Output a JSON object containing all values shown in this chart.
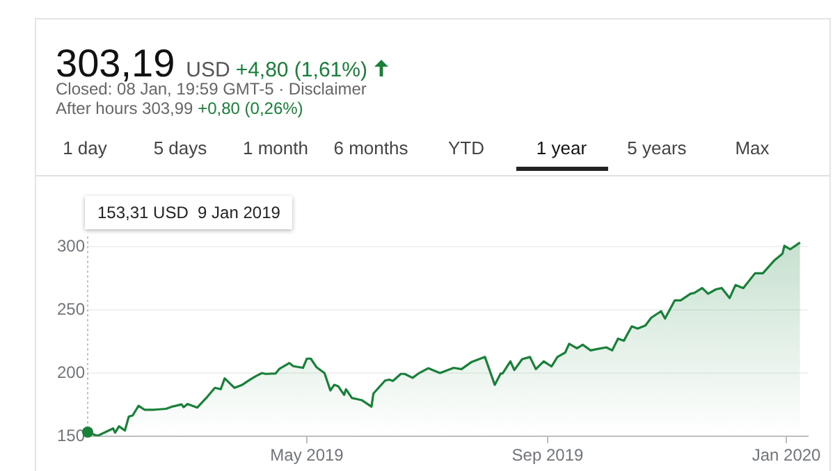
{
  "chart_data": {
    "type": "area",
    "title": "303,19",
    "subtitle": "USD",
    "annotations": [
      "+4,80 (1,61%)",
      "Closed: 08 Jan, 19:59 GMT-5 · Disclaimer",
      "After hours 303,99",
      "+0,80 (0,26%)",
      "1 day",
      "5 days",
      "1 month",
      "6 months",
      "YTD",
      "1 year",
      "5 years",
      "Max",
      "153,31 USD  9 Jan 2019"
    ],
    "x": [
      "2019-01-09",
      "2019-01-14",
      "2019-01-22",
      "2019-01-23",
      "2019-01-25",
      "2019-01-28",
      "2019-01-30",
      "2019-02-01",
      "2019-02-04",
      "2019-02-07",
      "2019-02-12",
      "2019-02-18",
      "2019-02-21",
      "2019-02-26",
      "2019-02-27",
      "2019-03-01",
      "2019-03-06",
      "2019-03-11",
      "2019-03-15",
      "2019-03-18",
      "2019-03-20",
      "2019-03-25",
      "2019-03-29",
      "2019-04-02",
      "2019-04-05",
      "2019-04-08",
      "2019-04-10",
      "2019-04-15",
      "2019-04-17",
      "2019-04-22",
      "2019-04-24",
      "2019-04-29",
      "2019-05-01",
      "2019-05-03",
      "2019-05-06",
      "2019-05-10",
      "2019-05-13",
      "2019-05-15",
      "2019-05-17",
      "2019-05-20",
      "2019-05-21",
      "2019-05-24",
      "2019-05-29",
      "2019-06-03",
      "2019-06-04",
      "2019-06-10",
      "2019-06-12",
      "2019-06-14",
      "2019-06-18",
      "2019-06-20",
      "2019-06-24",
      "2019-06-27",
      "2019-07-02",
      "2019-07-08",
      "2019-07-15",
      "2019-07-19",
      "2019-07-24",
      "2019-07-31",
      "2019-08-05",
      "2019-08-08",
      "2019-08-09",
      "2019-08-13",
      "2019-08-15",
      "2019-08-19",
      "2019-08-23",
      "2019-08-26",
      "2019-08-30",
      "2019-09-03",
      "2019-09-06",
      "2019-09-10",
      "2019-09-12",
      "2019-09-16",
      "2019-09-19",
      "2019-09-23",
      "2019-09-26",
      "2019-10-01",
      "2019-10-04",
      "2019-10-07",
      "2019-10-10",
      "2019-10-14",
      "2019-10-17",
      "2019-10-21",
      "2019-10-24",
      "2019-10-29",
      "2019-10-31",
      "2019-11-05",
      "2019-11-08",
      "2019-11-13",
      "2019-11-15",
      "2019-11-19",
      "2019-11-22",
      "2019-11-26",
      "2019-11-29",
      "2019-12-03",
      "2019-12-06",
      "2019-12-10",
      "2019-12-16",
      "2019-12-20",
      "2019-12-26",
      "2019-12-30",
      "2019-12-31",
      "2020-01-03",
      "2020-01-08"
    ],
    "series": [
      {
        "color": "#188038",
        "values": [
          153.3,
          150.3,
          156.2,
          152.8,
          157.9,
          154.5,
          165.5,
          166.5,
          174.1,
          171,
          171,
          171.7,
          173.4,
          175.2,
          173,
          175.5,
          172.7,
          181,
          188.3,
          187.2,
          195.8,
          188.3,
          190.7,
          194.8,
          197.6,
          200,
          199.3,
          199.6,
          203.4,
          207.9,
          205.5,
          204.1,
          211.4,
          211.4,
          204.5,
          200,
          186.2,
          190.7,
          189.6,
          182.7,
          187.2,
          180.3,
          178.6,
          173.4,
          183.8,
          194.1,
          194.8,
          193.8,
          199.3,
          199.3,
          196.2,
          199.6,
          203.8,
          200,
          204.1,
          203.1,
          208.6,
          212.7,
          190.7,
          199.6,
          199.6,
          209.3,
          202.4,
          211,
          212.7,
          203.1,
          209.3,
          205.2,
          212.7,
          216.2,
          223.1,
          219.6,
          222.4,
          217.9,
          218.9,
          220.3,
          217.9,
          227.2,
          225.6,
          236.9,
          235.2,
          237.6,
          243.8,
          248.9,
          243.1,
          257.5,
          257.5,
          262.7,
          263.4,
          267.2,
          262.7,
          266.2,
          267.2,
          259.3,
          269.6,
          267.2,
          278.9,
          278.9,
          289.3,
          294.4,
          300.6,
          297.9,
          303.2
        ]
      }
    ],
    "xlim": [
      "2019-01-09",
      "2020-01-12"
    ],
    "xticks": [
      {
        "value": "2019-05-01",
        "label": "May 2019"
      },
      {
        "value": "2019-09-01",
        "label": "Sep 2019"
      },
      {
        "value": "2020-01-01",
        "label": "Jan 2020"
      }
    ],
    "ylim": [
      150,
      308
    ],
    "yticks": [
      150,
      200,
      250,
      300
    ],
    "grid": "y",
    "legend": false
  }
}
